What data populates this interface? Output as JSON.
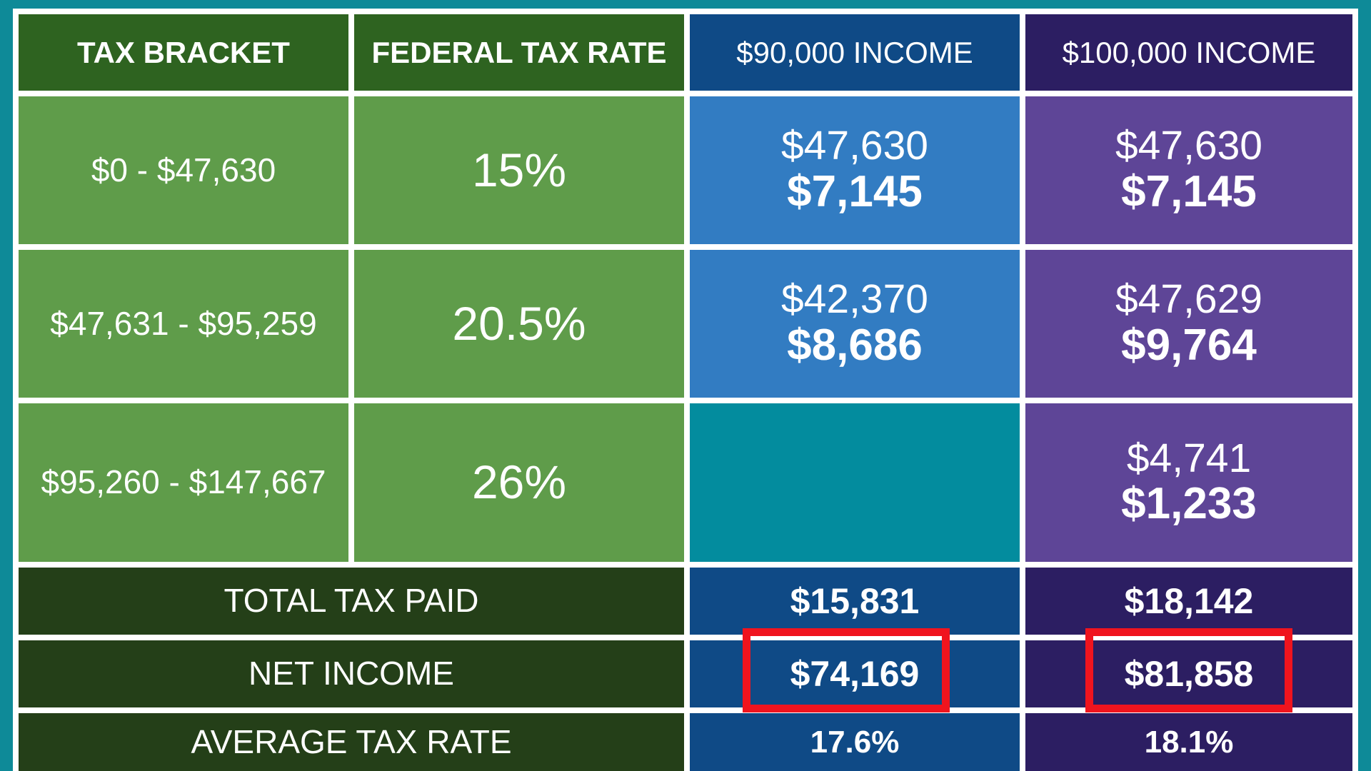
{
  "colors": {
    "outer_teal": "#0e8a98",
    "grid_lines": "#ffffff",
    "header_green": "#2e6320",
    "cell_green": "#5f9c4a",
    "header_blue": "#0f4a86",
    "cell_blue": "#327cc2",
    "empty_teal": "#038c9e",
    "header_purple": "#2c1e62",
    "cell_purple": "#5e4597",
    "summary_green": "#243f18",
    "highlight_red": "#f0141e"
  },
  "headers": {
    "bracket": "TAX BRACKET",
    "rate": "FEDERAL TAX RATE",
    "income_a": "$90,000 INCOME",
    "income_b": "$100,000 INCOME"
  },
  "rows": [
    {
      "bracket": "$0 - $47,630",
      "rate": "15%",
      "a_income": "$47,630",
      "a_tax": "$7,145",
      "b_income": "$47,630",
      "b_tax": "$7,145"
    },
    {
      "bracket": "$47,631 - $95,259",
      "rate": "20.5%",
      "a_income": "$42,370",
      "a_tax": "$8,686",
      "b_income": "$47,629",
      "b_tax": "$9,764"
    },
    {
      "bracket": "$95,260 - $147,667",
      "rate": "26%",
      "a_income": "",
      "a_tax": "",
      "b_income": "$4,741",
      "b_tax": "$1,233"
    }
  ],
  "summary": {
    "total": {
      "label": "TOTAL TAX PAID",
      "a": "$15,831",
      "b": "$18,142"
    },
    "net": {
      "label": "NET INCOME",
      "a": "$74,169",
      "b": "$81,858"
    },
    "avg": {
      "label": "AVERAGE TAX RATE",
      "a": "17.6%",
      "b": "18.1%"
    }
  }
}
